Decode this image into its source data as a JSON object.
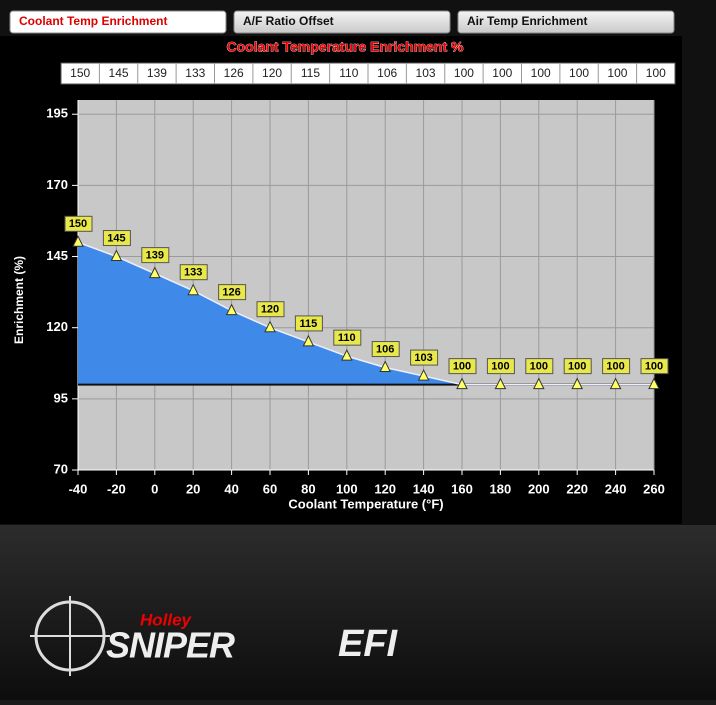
{
  "tabs": [
    "Coolant Temp Enrichment",
    "A/F Ratio Offset",
    "Air Temp Enrichment"
  ],
  "active_tab": 0,
  "brand": {
    "maker": "Holley",
    "product": "SNIPER",
    "suffix": "EFI"
  },
  "chart_data": {
    "type": "area",
    "title": "Coolant Temperature Enrichment %",
    "x_label": "Coolant Temperature (°F)",
    "y_label": "Enrichment (%)",
    "x": [
      -40,
      -20,
      0,
      20,
      40,
      60,
      80,
      100,
      120,
      140,
      160,
      180,
      200,
      220,
      240,
      260
    ],
    "series": [
      {
        "name": "Enrichment",
        "color": "#3f8ae8",
        "values": [
          150,
          145,
          139,
          133,
          126,
          120,
          115,
          110,
          106,
          103,
          100,
          100,
          100,
          100,
          100,
          100
        ]
      }
    ],
    "baseline": 100,
    "xlim": [
      -40,
      260
    ],
    "xticks": [
      -40,
      -20,
      0,
      20,
      40,
      60,
      80,
      100,
      120,
      140,
      160,
      180,
      200,
      220,
      240,
      260
    ],
    "ylim": [
      70,
      200
    ],
    "yticks": [
      70,
      95,
      120,
      145,
      170,
      195
    ],
    "grid": true
  }
}
